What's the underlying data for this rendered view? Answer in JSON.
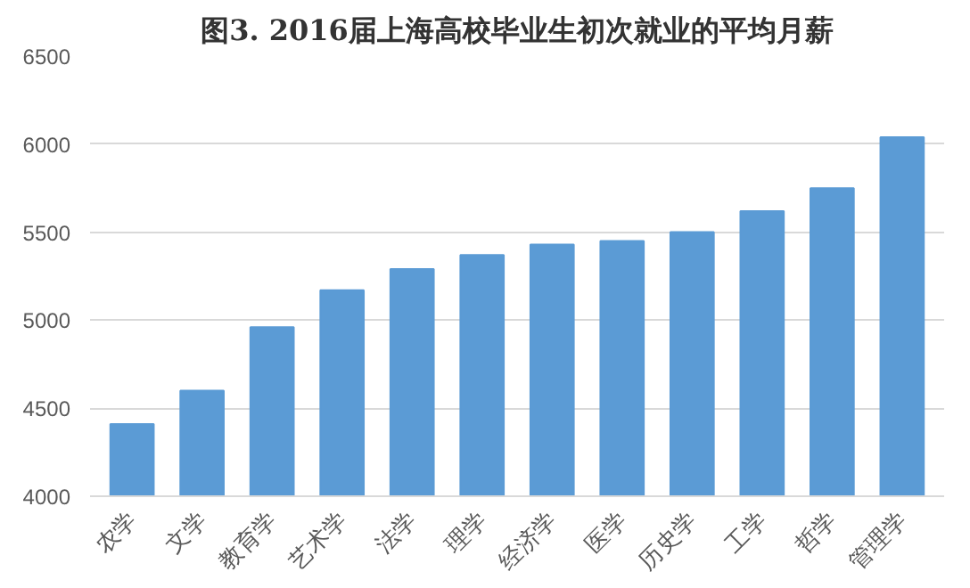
{
  "chart_data": {
    "type": "bar",
    "title": "图3. 2016届上海高校毕业生初次就业的平均月薪",
    "categories": [
      "农学",
      "文学",
      "教育学",
      "艺术学",
      "法学",
      "理学",
      "经济学",
      "医学",
      "历史学",
      "工学",
      "哲学",
      "管理学"
    ],
    "values": [
      4410,
      4600,
      4960,
      5170,
      5290,
      5370,
      5430,
      5450,
      5500,
      5620,
      5750,
      6040
    ],
    "color": "#5b9bd5",
    "ylim": [
      4000,
      6500
    ],
    "yticks": [
      4000,
      4500,
      5000,
      5500,
      6000,
      6500
    ],
    "grid": "y"
  }
}
